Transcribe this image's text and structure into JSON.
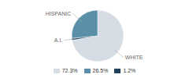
{
  "chart_data": {
    "type": "pie",
    "categories": [
      "WHITE",
      "A.I.",
      "HISPANIC"
    ],
    "values": [
      72.3,
      1.2,
      26.5
    ],
    "colors": [
      "#d6dce4",
      "#1f3f5b",
      "#5b8fa8"
    ],
    "legend": "bottom",
    "legend_items": [
      {
        "value": 72.3,
        "label": "72.3%",
        "color": "#d6dce4"
      },
      {
        "value": 26.5,
        "label": "26.5%",
        "color": "#5b8fa8"
      },
      {
        "value": 1.2,
        "label": "1.2%",
        "color": "#1f3f5b"
      }
    ]
  }
}
